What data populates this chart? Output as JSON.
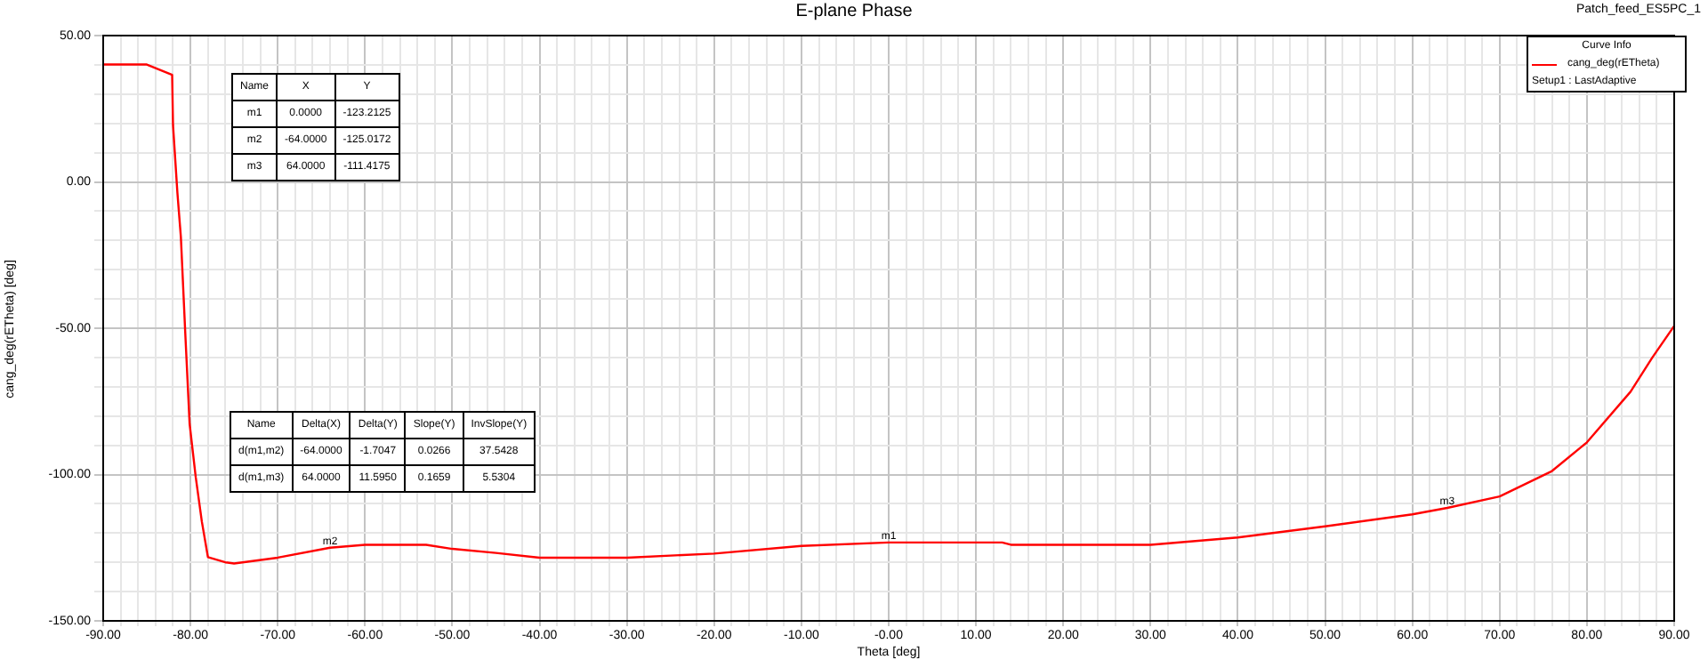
{
  "chart_data": {
    "type": "line",
    "title": "E-plane Phase",
    "xlabel": "Theta [deg]",
    "ylabel": "cang_deg(rETheta) [deg]",
    "legend_title": "Curve Info",
    "legend": "top right",
    "grid": true,
    "marker": "none",
    "line_style": "solid",
    "xlim": [
      -90,
      90
    ],
    "ylim": [
      -150,
      50
    ],
    "xticks": [
      {
        "value": -90,
        "label": "-90.00"
      },
      {
        "value": -88,
        "label": null
      },
      {
        "value": -86,
        "label": null
      },
      {
        "value": -84,
        "label": null
      },
      {
        "value": -82,
        "label": null
      },
      {
        "value": -80,
        "label": "-80.00"
      },
      {
        "value": -78,
        "label": null
      },
      {
        "value": -76,
        "label": null
      },
      {
        "value": -74,
        "label": null
      },
      {
        "value": -72,
        "label": null
      },
      {
        "value": -70,
        "label": "-70.00"
      },
      {
        "value": -68,
        "label": null
      },
      {
        "value": -66,
        "label": null
      },
      {
        "value": -64,
        "label": null
      },
      {
        "value": -62,
        "label": null
      },
      {
        "value": -60,
        "label": "-60.00"
      },
      {
        "value": -58,
        "label": null
      },
      {
        "value": -56,
        "label": null
      },
      {
        "value": -54,
        "label": null
      },
      {
        "value": -52,
        "label": null
      },
      {
        "value": -50,
        "label": "-50.00"
      },
      {
        "value": -48,
        "label": null
      },
      {
        "value": -46,
        "label": null
      },
      {
        "value": -44,
        "label": null
      },
      {
        "value": -42,
        "label": null
      },
      {
        "value": -40,
        "label": "-40.00"
      },
      {
        "value": -38,
        "label": null
      },
      {
        "value": -36,
        "label": null
      },
      {
        "value": -34,
        "label": null
      },
      {
        "value": -32,
        "label": null
      },
      {
        "value": -30,
        "label": "-30.00"
      },
      {
        "value": -28,
        "label": null
      },
      {
        "value": -26,
        "label": null
      },
      {
        "value": -24,
        "label": null
      },
      {
        "value": -22,
        "label": null
      },
      {
        "value": -20,
        "label": "-20.00"
      },
      {
        "value": -18,
        "label": null
      },
      {
        "value": -16,
        "label": null
      },
      {
        "value": -14,
        "label": null
      },
      {
        "value": -12,
        "label": null
      },
      {
        "value": -10,
        "label": "-10.00"
      },
      {
        "value": -8,
        "label": null
      },
      {
        "value": -6,
        "label": null
      },
      {
        "value": -4,
        "label": null
      },
      {
        "value": -2,
        "label": null
      },
      {
        "value": 0,
        "label": "-0.00"
      },
      {
        "value": 2,
        "label": null
      },
      {
        "value": 4,
        "label": null
      },
      {
        "value": 6,
        "label": null
      },
      {
        "value": 8,
        "label": null
      },
      {
        "value": 10,
        "label": "10.00"
      },
      {
        "value": 12,
        "label": null
      },
      {
        "value": 14,
        "label": null
      },
      {
        "value": 16,
        "label": null
      },
      {
        "value": 18,
        "label": null
      },
      {
        "value": 20,
        "label": "20.00"
      },
      {
        "value": 22,
        "label": null
      },
      {
        "value": 24,
        "label": null
      },
      {
        "value": 26,
        "label": null
      },
      {
        "value": 28,
        "label": null
      },
      {
        "value": 30,
        "label": "30.00"
      },
      {
        "value": 32,
        "label": null
      },
      {
        "value": 34,
        "label": null
      },
      {
        "value": 36,
        "label": null
      },
      {
        "value": 38,
        "label": null
      },
      {
        "value": 40,
        "label": "40.00"
      },
      {
        "value": 42,
        "label": null
      },
      {
        "value": 44,
        "label": null
      },
      {
        "value": 46,
        "label": null
      },
      {
        "value": 48,
        "label": null
      },
      {
        "value": 50,
        "label": "50.00"
      },
      {
        "value": 52,
        "label": null
      },
      {
        "value": 54,
        "label": null
      },
      {
        "value": 56,
        "label": null
      },
      {
        "value": 58,
        "label": null
      },
      {
        "value": 60,
        "label": "60.00"
      },
      {
        "value": 62,
        "label": null
      },
      {
        "value": 64,
        "label": null
      },
      {
        "value": 66,
        "label": null
      },
      {
        "value": 68,
        "label": null
      },
      {
        "value": 70,
        "label": "70.00"
      },
      {
        "value": 72,
        "label": null
      },
      {
        "value": 74,
        "label": null
      },
      {
        "value": 76,
        "label": null
      },
      {
        "value": 78,
        "label": null
      },
      {
        "value": 80,
        "label": "80.00"
      },
      {
        "value": 82,
        "label": null
      },
      {
        "value": 84,
        "label": null
      },
      {
        "value": 86,
        "label": null
      },
      {
        "value": 88,
        "label": null
      },
      {
        "value": 90,
        "label": "90.00"
      }
    ],
    "yticks": [
      {
        "value": -150,
        "label": "-150.00"
      },
      {
        "value": -140,
        "label": null
      },
      {
        "value": -130,
        "label": null
      },
      {
        "value": -120,
        "label": null
      },
      {
        "value": -110,
        "label": null
      },
      {
        "value": -100,
        "label": "-100.00"
      },
      {
        "value": -90,
        "label": null
      },
      {
        "value": -80,
        "label": null
      },
      {
        "value": -70,
        "label": null
      },
      {
        "value": -60,
        "label": null
      },
      {
        "value": -50,
        "label": "-50.00"
      },
      {
        "value": -40,
        "label": null
      },
      {
        "value": -30,
        "label": null
      },
      {
        "value": -20,
        "label": null
      },
      {
        "value": -10,
        "label": null
      },
      {
        "value": 0,
        "label": "0.00"
      },
      {
        "value": 10,
        "label": null
      },
      {
        "value": 20,
        "label": null
      },
      {
        "value": 30,
        "label": null
      },
      {
        "value": 40,
        "label": null
      },
      {
        "value": 50,
        "label": "50.00"
      }
    ],
    "x": [
      -90,
      -85,
      -82.1,
      -82,
      -81.5,
      -81.1,
      -80.6,
      -80.1,
      -79.4,
      -78.7,
      -78,
      -76,
      -75,
      -70,
      -64,
      -60,
      -55,
      -53,
      -50,
      -45,
      -40,
      -30,
      -20,
      -10,
      0,
      13,
      14,
      30,
      40,
      50,
      60,
      64,
      70,
      76,
      80,
      85,
      87.5,
      90
    ],
    "series": [
      {
        "name": "cang_deg(rETheta)",
        "color": "#ff0000",
        "values": [
          40.1,
          40.1,
          36.6,
          19.4,
          -3.6,
          -18.8,
          -51.4,
          -82.6,
          -100.8,
          -116,
          -128.2,
          -130,
          -130.4,
          -128.4,
          -125,
          -124,
          -124,
          -124,
          -125.4,
          -126.8,
          -128.4,
          -128.4,
          -127,
          -124.4,
          -123.2,
          -123.2,
          -124,
          -124,
          -121.5,
          -117.7,
          -113.6,
          -111.4,
          -107.5,
          -98.8,
          -89,
          -71.7,
          -60,
          -49.2
        ]
      }
    ],
    "annotations": [
      "Patch_feed_ES5PC_1",
      "Setup1 : LastAdaptive",
      {
        "text": "m1",
        "x": 0,
        "y": -123.2125
      },
      {
        "text": "m2",
        "x": -64,
        "y": -125.0172
      },
      {
        "text": "m3",
        "x": 64,
        "y": -111.4175
      },
      "Name",
      "X",
      "Y",
      "m1",
      "0.0000",
      "-123.2125",
      "m2",
      "-64.0000",
      "-125.0172",
      "m3",
      "64.0000",
      "-111.4175",
      "Name",
      "Delta(X)",
      "Delta(Y)",
      "Slope(Y)",
      "InvSlope(Y)",
      "d(m1,m2)",
      "-64.0000",
      "-1.7047",
      "0.0266",
      "37.5428",
      "d(m1,m3)",
      "64.0000",
      "11.5950",
      "0.1659",
      "5.5304"
    ]
  }
}
